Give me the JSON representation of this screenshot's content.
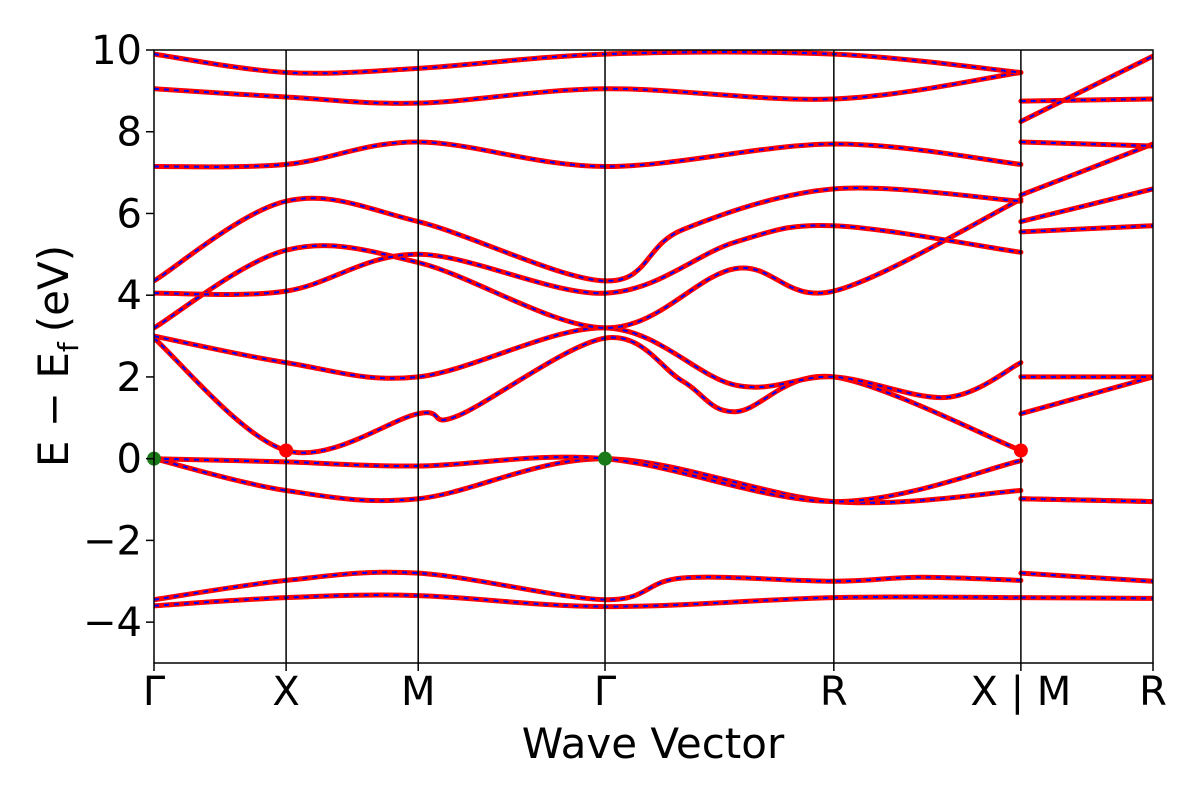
{
  "chart_data": {
    "type": "line",
    "title": "",
    "xlabel": "Wave Vector",
    "ylabel_main": "E − E",
    "ylabel_sub": "f",
    "ylabel_unit": "(eV)",
    "ylim": [
      -5,
      10
    ],
    "yticks": [
      -4,
      -2,
      0,
      2,
      4,
      6,
      8,
      10
    ],
    "ytick_labels": [
      "−4",
      "−2",
      "0",
      "2",
      "4",
      "6",
      "8",
      "10"
    ],
    "kpath_ticks": [
      {
        "label": "Γ",
        "k": 0.0
      },
      {
        "label": "X",
        "k": 0.5
      },
      {
        "label": "M",
        "k": 1.0
      },
      {
        "label": "Γ",
        "k": 1.707
      },
      {
        "label": "R",
        "k": 2.573
      },
      {
        "label": "X | M",
        "k": 3.281
      },
      {
        "label": "R",
        "k": 3.781
      }
    ],
    "xlim": [
      0,
      3.781
    ],
    "series": [
      {
        "segments": [
          [
            [
              0,
              -3.6
            ],
            [
              0.5,
              -3.4
            ],
            [
              1.0,
              -3.35
            ],
            [
              1.707,
              -3.62
            ],
            [
              2.573,
              -3.4
            ],
            [
              3.281,
              -3.4
            ]
          ],
          [
            [
              3.281,
              -3.4
            ],
            [
              3.781,
              -3.42
            ]
          ]
        ]
      },
      {
        "segments": [
          [
            [
              0,
              -3.45
            ],
            [
              0.5,
              -2.98
            ],
            [
              1.0,
              -2.8
            ],
            [
              1.707,
              -3.45
            ],
            [
              2.0,
              -2.92
            ],
            [
              2.573,
              -3.0
            ],
            [
              2.9,
              -2.9
            ],
            [
              3.281,
              -2.98
            ]
          ],
          [
            [
              3.281,
              -2.8
            ],
            [
              3.781,
              -3.0
            ]
          ]
        ]
      },
      {
        "segments": [
          [
            [
              0,
              0.0
            ],
            [
              0.5,
              -0.78
            ],
            [
              1.0,
              -0.98
            ],
            [
              1.707,
              0.0
            ],
            [
              2.573,
              -1.05
            ],
            [
              3.281,
              -0.78
            ]
          ],
          [
            [
              3.281,
              -0.98
            ],
            [
              3.781,
              -1.05
            ]
          ]
        ]
      },
      {
        "segments": [
          [
            [
              0,
              0.0
            ],
            [
              0.5,
              -0.08
            ],
            [
              1.0,
              -0.18
            ],
            [
              1.707,
              0.0
            ],
            [
              2.573,
              -1.05
            ],
            [
              3.281,
              -0.05
            ]
          ],
          [
            [
              3.281,
              -0.98
            ],
            [
              3.781,
              -1.05
            ]
          ]
        ]
      },
      {
        "segments": [
          [
            [
              0,
              2.95
            ],
            [
              0.5,
              0.2
            ],
            [
              1.0,
              1.1
            ],
            [
              1.15,
              1.05
            ],
            [
              1.707,
              2.95
            ],
            [
              2.0,
              1.9
            ],
            [
              2.2,
              1.15
            ],
            [
              2.573,
              2.0
            ],
            [
              3.281,
              0.2
            ]
          ],
          [
            [
              3.281,
              1.1
            ],
            [
              3.781,
              2.0
            ]
          ]
        ]
      },
      {
        "segments": [
          [
            [
              0,
              3.0
            ],
            [
              0.5,
              2.35
            ],
            [
              1.0,
              2.0
            ],
            [
              1.707,
              3.2
            ],
            [
              2.2,
              1.8
            ],
            [
              2.573,
              2.0
            ],
            [
              3.0,
              1.5
            ],
            [
              3.281,
              2.35
            ]
          ],
          [
            [
              3.281,
              2.0
            ],
            [
              3.781,
              2.0
            ]
          ]
        ]
      },
      {
        "segments": [
          [
            [
              0,
              3.2
            ],
            [
              0.5,
              5.1
            ],
            [
              1.0,
              4.8
            ],
            [
              1.707,
              3.2
            ],
            [
              2.2,
              4.65
            ],
            [
              2.573,
              4.1
            ],
            [
              3.281,
              6.35
            ]
          ],
          [
            [
              3.281,
              5.55
            ],
            [
              3.781,
              5.7
            ]
          ]
        ]
      },
      {
        "segments": [
          [
            [
              0,
              4.05
            ],
            [
              0.5,
              4.1
            ],
            [
              1.0,
              5.0
            ],
            [
              1.707,
              4.05
            ],
            [
              2.2,
              5.3
            ],
            [
              2.573,
              5.7
            ],
            [
              3.281,
              5.05
            ]
          ],
          [
            [
              3.281,
              5.8
            ],
            [
              3.781,
              6.6
            ]
          ]
        ]
      },
      {
        "segments": [
          [
            [
              0,
              4.35
            ],
            [
              0.5,
              6.3
            ],
            [
              1.0,
              5.8
            ],
            [
              1.707,
              4.35
            ],
            [
              2.0,
              5.6
            ],
            [
              2.573,
              6.6
            ],
            [
              3.281,
              6.3
            ]
          ],
          [
            [
              3.281,
              6.45
            ],
            [
              3.781,
              7.7
            ]
          ]
        ]
      },
      {
        "segments": [
          [
            [
              0,
              7.15
            ],
            [
              0.5,
              7.2
            ],
            [
              1.0,
              7.75
            ],
            [
              1.707,
              7.15
            ],
            [
              2.573,
              7.7
            ],
            [
              3.281,
              7.2
            ]
          ],
          [
            [
              3.281,
              7.75
            ],
            [
              3.781,
              7.65
            ]
          ]
        ]
      },
      {
        "segments": [
          [
            [
              0,
              9.05
            ],
            [
              0.5,
              8.85
            ],
            [
              1.0,
              8.7
            ],
            [
              1.707,
              9.05
            ],
            [
              2.573,
              8.8
            ],
            [
              3.281,
              9.45
            ]
          ],
          [
            [
              3.281,
              8.75
            ],
            [
              3.781,
              8.8
            ]
          ]
        ]
      },
      {
        "segments": [
          [
            [
              0,
              9.9
            ],
            [
              0.5,
              9.45
            ],
            [
              1.0,
              9.55
            ],
            [
              1.707,
              9.9
            ],
            [
              2.573,
              9.9
            ],
            [
              3.281,
              9.45
            ]
          ],
          [
            [
              3.281,
              8.25
            ],
            [
              3.781,
              9.85
            ]
          ]
        ]
      }
    ],
    "markers": [
      {
        "k": 0.0,
        "e": 0.0,
        "color": "#1a7a1a"
      },
      {
        "k": 1.707,
        "e": 0.0,
        "color": "#1a7a1a"
      },
      {
        "k": 0.5,
        "e": 0.2,
        "color": "#ff0000"
      },
      {
        "k": 3.281,
        "e": 0.2,
        "color": "#ff0000"
      }
    ],
    "colors": {
      "band": "#ff0000",
      "band_overlay": "#0000ff",
      "vbm": "#1a7a1a",
      "cbm": "#ff0000"
    },
    "grid": false
  }
}
